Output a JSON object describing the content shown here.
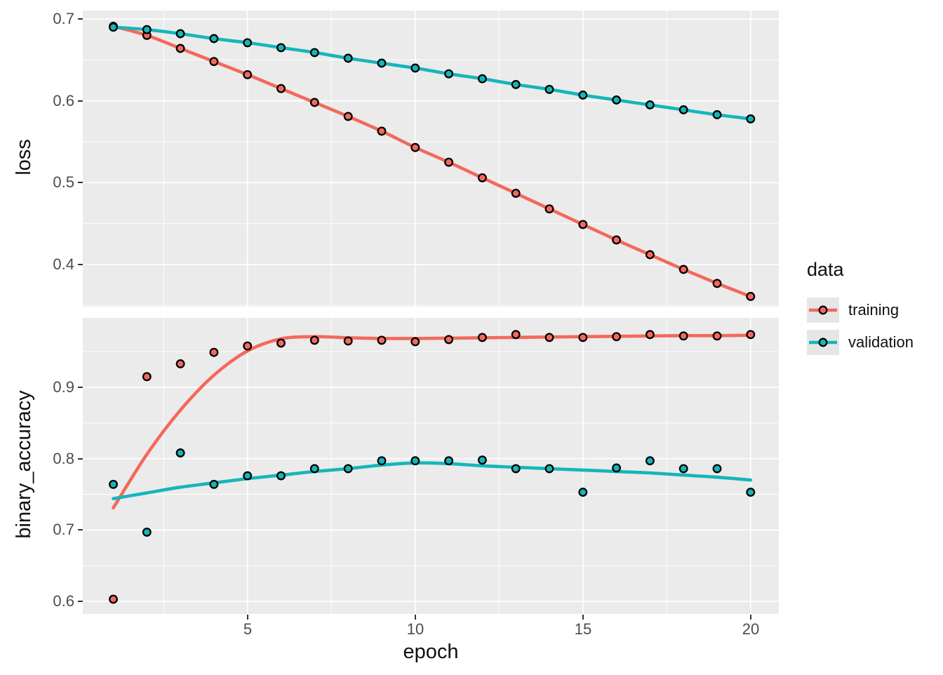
{
  "figure": {
    "panel_background": "#EBEBEB",
    "grid_color": "#FFFFFF",
    "tick_color": "#333333",
    "tick_label_color": "#4D4D4D",
    "axis_title_color": "#101010"
  },
  "legend": {
    "title": "data",
    "position": "right",
    "key_background": "#E6E6E6",
    "items": [
      {
        "label": "training",
        "color": "#F3695D"
      },
      {
        "label": "validation",
        "color": "#14B6BA"
      }
    ]
  },
  "chart_data": [
    {
      "type": "line",
      "facet": "loss",
      "title": "",
      "xlabel": "",
      "ylabel": "loss",
      "grid": "on",
      "xlim": [
        0.09,
        20.84
      ],
      "ylim": [
        0.3486,
        0.7103
      ],
      "xticks": [
        5,
        10,
        15,
        20
      ],
      "xtick_labels": [
        "5",
        "10",
        "15",
        "20"
      ],
      "xticks_minor": [
        2.5,
        7.5,
        12.5,
        17.5
      ],
      "yticks": [
        0.4,
        0.5,
        0.6,
        0.7
      ],
      "ytick_labels": [
        "0.4",
        "0.5",
        "0.6",
        "0.7"
      ],
      "yticks_minor": [
        0.35,
        0.45,
        0.55,
        0.65
      ],
      "x": [
        1,
        2,
        3,
        4,
        5,
        6,
        7,
        8,
        9,
        10,
        11,
        12,
        13,
        14,
        15,
        16,
        17,
        18,
        19,
        20
      ],
      "series": [
        {
          "name": "training",
          "points": [
            0.691,
            0.68,
            0.664,
            0.648,
            0.632,
            0.615,
            0.598,
            0.581,
            0.563,
            0.543,
            0.525,
            0.506,
            0.487,
            0.468,
            0.449,
            0.43,
            0.412,
            0.394,
            0.377,
            0.361
          ],
          "smooth": [
            0.691,
            0.68,
            0.664,
            0.648,
            0.632,
            0.615,
            0.598,
            0.581,
            0.563,
            0.543,
            0.525,
            0.506,
            0.487,
            0.468,
            0.449,
            0.43,
            0.412,
            0.394,
            0.377,
            0.361
          ]
        },
        {
          "name": "validation",
          "points": [
            0.69,
            0.687,
            0.682,
            0.676,
            0.671,
            0.665,
            0.659,
            0.652,
            0.646,
            0.64,
            0.633,
            0.627,
            0.62,
            0.614,
            0.607,
            0.601,
            0.595,
            0.589,
            0.583,
            0.578
          ],
          "smooth": [
            0.69,
            0.687,
            0.682,
            0.676,
            0.671,
            0.665,
            0.659,
            0.652,
            0.646,
            0.64,
            0.633,
            0.627,
            0.62,
            0.614,
            0.607,
            0.601,
            0.595,
            0.589,
            0.583,
            0.578
          ]
        }
      ]
    },
    {
      "type": "line",
      "facet": "binary_accuracy",
      "title": "",
      "xlabel": "epoch",
      "ylabel": "binary_accuracy",
      "grid": "on",
      "xlim": [
        0.09,
        20.84
      ],
      "ylim": [
        0.5823,
        0.9974
      ],
      "xticks": [
        5,
        10,
        15,
        20
      ],
      "xtick_labels": [
        "5",
        "10",
        "15",
        "20"
      ],
      "xticks_minor": [
        2.5,
        7.5,
        12.5,
        17.5
      ],
      "yticks": [
        0.6,
        0.7,
        0.8,
        0.9
      ],
      "ytick_labels": [
        "0.6",
        "0.7",
        "0.8",
        "0.9"
      ],
      "yticks_minor": [
        0.65,
        0.75,
        0.85,
        0.95
      ],
      "x": [
        1,
        2,
        3,
        4,
        5,
        6,
        7,
        8,
        9,
        10,
        11,
        12,
        13,
        14,
        15,
        16,
        17,
        18,
        19,
        20
      ],
      "series": [
        {
          "name": "training",
          "points": [
            0.603,
            0.915,
            0.933,
            0.949,
            0.958,
            0.962,
            0.966,
            0.965,
            0.966,
            0.964,
            0.967,
            0.97,
            0.974,
            0.97,
            0.97,
            0.971,
            0.974,
            0.972,
            0.972,
            0.974
          ],
          "smooth": [
            0.731,
            0.806,
            0.868,
            0.917,
            0.951,
            0.968,
            0.971,
            0.9695,
            0.9685,
            0.9685,
            0.969,
            0.9695,
            0.97,
            0.9705,
            0.971,
            0.9715,
            0.972,
            0.9725,
            0.9725,
            0.973
          ]
        },
        {
          "name": "validation",
          "points": [
            0.764,
            0.697,
            0.808,
            0.764,
            0.776,
            0.776,
            0.786,
            0.786,
            0.797,
            0.797,
            0.797,
            0.798,
            0.786,
            0.786,
            0.753,
            0.787,
            0.797,
            0.786,
            0.786,
            0.753
          ],
          "smooth": [
            0.744,
            0.752,
            0.76,
            0.766,
            0.772,
            0.777,
            0.782,
            0.786,
            0.791,
            0.794,
            0.793,
            0.79,
            0.788,
            0.786,
            0.784,
            0.782,
            0.78,
            0.777,
            0.774,
            0.77
          ]
        }
      ]
    }
  ]
}
